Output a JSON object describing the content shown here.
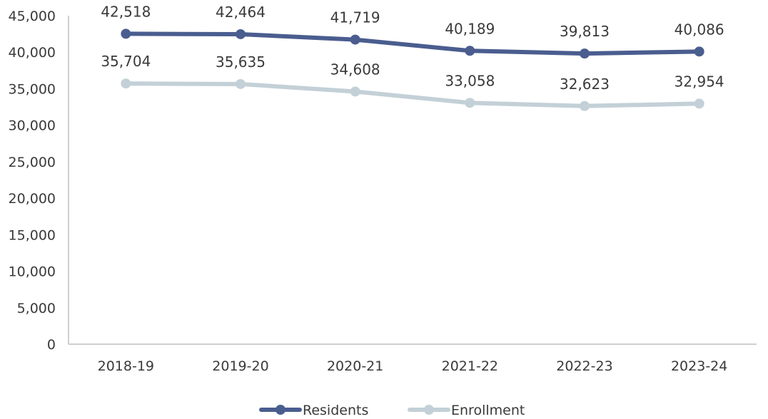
{
  "chart_data": {
    "type": "line",
    "title": "",
    "xlabel": "",
    "ylabel": "",
    "categories": [
      "2018-19",
      "2019-20",
      "2020-21",
      "2021-22",
      "2022-23",
      "2023-24"
    ],
    "ylim": [
      0,
      45000
    ],
    "yticks": [
      0,
      5000,
      10000,
      15000,
      20000,
      25000,
      30000,
      35000,
      40000,
      45000
    ],
    "ytick_labels": [
      "0",
      "5,000",
      "10,000",
      "15,000",
      "20,000",
      "25,000",
      "30,000",
      "35,000",
      "40,000",
      "45,000"
    ],
    "grid": false,
    "legend_position": "bottom",
    "series": [
      {
        "name": "Residents",
        "color": "#4a5d8f",
        "values": [
          42518,
          42464,
          41719,
          40189,
          39813,
          40086
        ],
        "labels": [
          "42,518",
          "42,464",
          "41,719",
          "40,189",
          "39,813",
          "40,086"
        ]
      },
      {
        "name": "Enrollment",
        "color": "#c3d0d7",
        "values": [
          35704,
          35635,
          34608,
          33058,
          32623,
          32954
        ],
        "labels": [
          "35,704",
          "35,635",
          "34,608",
          "33,058",
          "32,623",
          "32,954"
        ]
      }
    ]
  }
}
